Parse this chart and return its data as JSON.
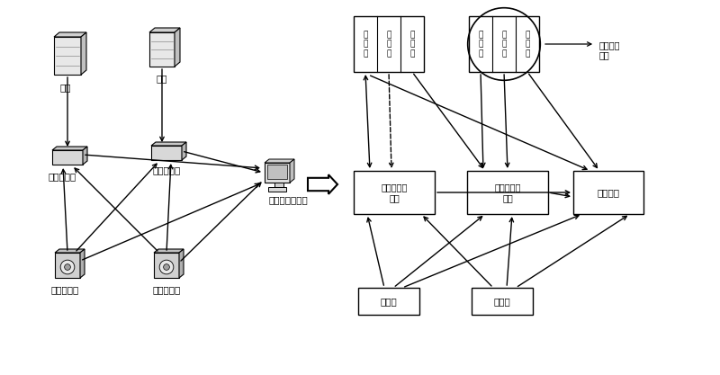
{
  "bg_color": "#ffffff",
  "left_labels": {
    "leng_ji": "冷机",
    "feng_ji": "风机",
    "leng_controller": "冷机控制器",
    "feng_controller": "风机控制器",
    "system_server": "系统监控服务器",
    "temp_sensor": "温度传感器",
    "humid_sensor": "湿度传感器"
  },
  "right_labels": {
    "sheding_hui1": "设\n定\n汇",
    "celiang_yuan1": "测\n量\n源",
    "sheding_yuan1": "设\n定\n源",
    "sheding_hui2": "设\n定\n汇",
    "celiang_yuan2": "测\n量\n源",
    "sheding_yuan2": "设\n定\n源",
    "node_label": "一个节点\n子集",
    "process_node1": "设定值加工\n节点",
    "process_node2": "设定值加工\n节点",
    "manage_node": "管理节点",
    "measure_src1": "测量源",
    "measure_src2": "测量源"
  }
}
